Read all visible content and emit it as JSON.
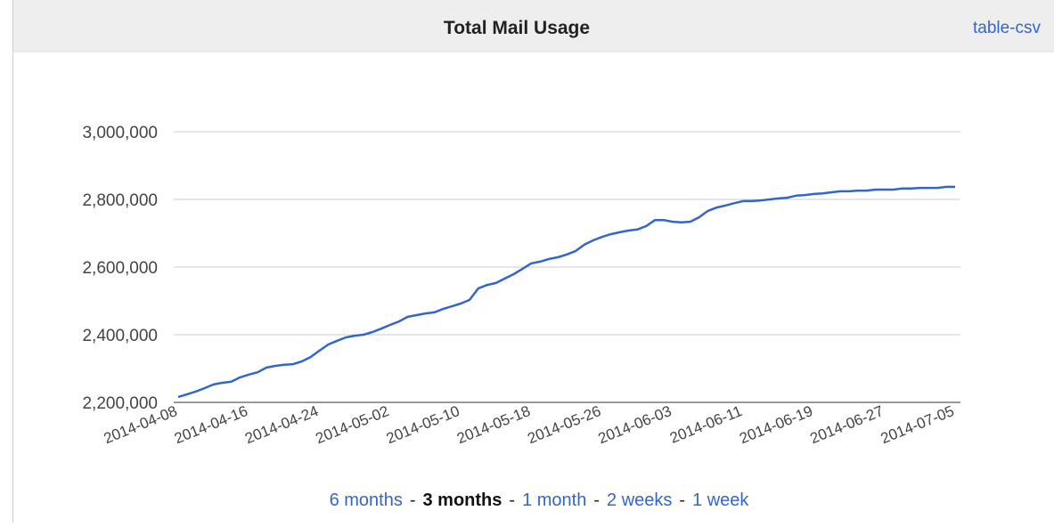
{
  "header": {
    "title": "Total Mail Usage",
    "link": "table-csv"
  },
  "chart_data": {
    "type": "line",
    "x": [
      "2014-04-08",
      "2014-04-09",
      "2014-04-10",
      "2014-04-11",
      "2014-04-12",
      "2014-04-13",
      "2014-04-14",
      "2014-04-15",
      "2014-04-16",
      "2014-04-17",
      "2014-04-18",
      "2014-04-19",
      "2014-04-20",
      "2014-04-21",
      "2014-04-22",
      "2014-04-23",
      "2014-04-24",
      "2014-04-25",
      "2014-04-26",
      "2014-04-27",
      "2014-04-28",
      "2014-04-29",
      "2014-04-30",
      "2014-05-01",
      "2014-05-02",
      "2014-05-03",
      "2014-05-04",
      "2014-05-05",
      "2014-05-06",
      "2014-05-07",
      "2014-05-08",
      "2014-05-09",
      "2014-05-10",
      "2014-05-11",
      "2014-05-12",
      "2014-05-13",
      "2014-05-14",
      "2014-05-15",
      "2014-05-16",
      "2014-05-17",
      "2014-05-18",
      "2014-05-19",
      "2014-05-20",
      "2014-05-21",
      "2014-05-22",
      "2014-05-23",
      "2014-05-24",
      "2014-05-25",
      "2014-05-26",
      "2014-05-27",
      "2014-05-28",
      "2014-05-29",
      "2014-05-30",
      "2014-05-31",
      "2014-06-01",
      "2014-06-02",
      "2014-06-03",
      "2014-06-04",
      "2014-06-05",
      "2014-06-06",
      "2014-06-07",
      "2014-06-08",
      "2014-06-09",
      "2014-06-10",
      "2014-06-11",
      "2014-06-12",
      "2014-06-13",
      "2014-06-14",
      "2014-06-15",
      "2014-06-16",
      "2014-06-17",
      "2014-06-18",
      "2014-06-19",
      "2014-06-20",
      "2014-06-21",
      "2014-06-22",
      "2014-06-23",
      "2014-06-24",
      "2014-06-25",
      "2014-06-26",
      "2014-06-27",
      "2014-06-28",
      "2014-06-29",
      "2014-06-30",
      "2014-07-01",
      "2014-07-02",
      "2014-07-03",
      "2014-07-04",
      "2014-07-05"
    ],
    "values": [
      2216000,
      2224000,
      2232000,
      2242000,
      2253000,
      2258000,
      2261000,
      2274000,
      2282000,
      2289000,
      2303000,
      2308000,
      2311000,
      2313000,
      2321000,
      2334000,
      2353000,
      2371000,
      2382000,
      2392000,
      2397000,
      2400000,
      2408000,
      2418000,
      2429000,
      2439000,
      2453000,
      2458000,
      2463000,
      2466000,
      2476000,
      2484000,
      2492000,
      2503000,
      2537000,
      2547000,
      2553000,
      2566000,
      2579000,
      2595000,
      2611000,
      2616000,
      2624000,
      2629000,
      2637000,
      2647000,
      2666000,
      2679000,
      2689000,
      2697000,
      2703000,
      2708000,
      2711000,
      2721000,
      2739000,
      2739000,
      2734000,
      2732000,
      2734000,
      2747000,
      2766000,
      2776000,
      2782000,
      2789000,
      2795000,
      2795000,
      2797000,
      2800000,
      2803000,
      2805000,
      2811000,
      2813000,
      2816000,
      2818000,
      2821000,
      2824000,
      2824000,
      2826000,
      2826000,
      2829000,
      2829000,
      2829000,
      2832000,
      2832000,
      2834000,
      2834000,
      2834000,
      2837000,
      2837000
    ],
    "color": "#3366cc",
    "ylim": [
      2200000,
      3000000
    ],
    "yticks": [
      {
        "value": 2200000,
        "label": "2,200,000"
      },
      {
        "value": 2400000,
        "label": "2,400,000"
      },
      {
        "value": 2600000,
        "label": "2,600,000"
      },
      {
        "value": 2800000,
        "label": "2,800,000"
      },
      {
        "value": 3000000,
        "label": "3,000,000"
      }
    ],
    "xticks": [
      "2014-04-08",
      "2014-04-16",
      "2014-04-24",
      "2014-05-02",
      "2014-05-10",
      "2014-05-18",
      "2014-05-26",
      "2014-06-03",
      "2014-06-11",
      "2014-06-19",
      "2014-06-27",
      "2014-07-05"
    ],
    "grid": true
  },
  "range_links": [
    {
      "label": "6 months"
    },
    {
      "label": "3 months",
      "selected": true
    },
    {
      "label": "1 month"
    },
    {
      "label": "2 weeks"
    },
    {
      "label": "1 week"
    }
  ],
  "range_separator": "-"
}
